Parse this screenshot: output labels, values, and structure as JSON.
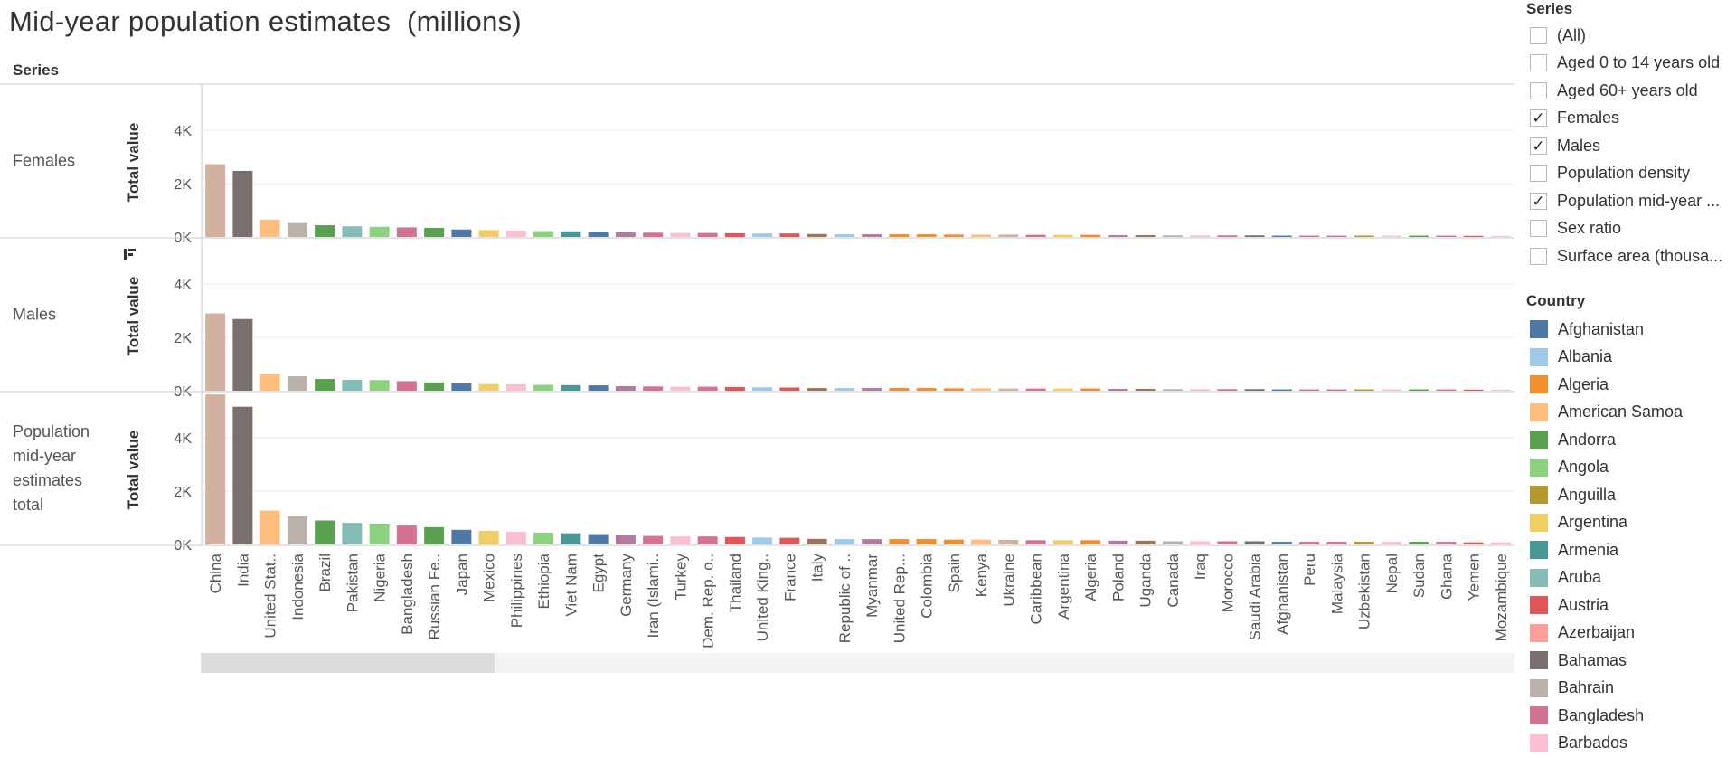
{
  "title": "Mid-year population estimates  (millions)",
  "row_header": "Series",
  "axis_label": "Total value",
  "series_filter": {
    "title": "Series",
    "items": [
      {
        "label": "(All)",
        "checked": false
      },
      {
        "label": "Aged 0 to 14 years old",
        "checked": false
      },
      {
        "label": "Aged 60+ years old",
        "checked": false
      },
      {
        "label": "Females",
        "checked": true
      },
      {
        "label": "Males",
        "checked": true
      },
      {
        "label": "Population density",
        "checked": false
      },
      {
        "label": "Population mid-year ...",
        "checked": true
      },
      {
        "label": "Sex ratio",
        "checked": false
      },
      {
        "label": "Surface area (thousa...",
        "checked": false
      }
    ]
  },
  "country_legend": {
    "title": "Country",
    "items": [
      {
        "label": "Afghanistan",
        "color": "#4e79a7"
      },
      {
        "label": "Albania",
        "color": "#a0cbe8"
      },
      {
        "label": "Algeria",
        "color": "#f28e2b"
      },
      {
        "label": "American Samoa",
        "color": "#ffbe7d"
      },
      {
        "label": "Andorra",
        "color": "#59a14f"
      },
      {
        "label": "Angola",
        "color": "#8cd17d"
      },
      {
        "label": "Anguilla",
        "color": "#b6992d"
      },
      {
        "label": "Argentina",
        "color": "#f1ce63"
      },
      {
        "label": "Armenia",
        "color": "#499894"
      },
      {
        "label": "Aruba",
        "color": "#86bcb6"
      },
      {
        "label": "Austria",
        "color": "#e15759"
      },
      {
        "label": "Azerbaijan",
        "color": "#ff9d9a"
      },
      {
        "label": "Bahamas",
        "color": "#79706e"
      },
      {
        "label": "Bahrain",
        "color": "#bab0ac"
      },
      {
        "label": "Bangladesh",
        "color": "#d37295"
      },
      {
        "label": "Barbados",
        "color": "#fabfd2"
      }
    ]
  },
  "chart_data": {
    "type": "bar",
    "layout": "small-multiples",
    "ylabel": "Total value",
    "ylim": [
      0,
      5600
    ],
    "yticks": [
      {
        "value": 0,
        "label": "0K"
      },
      {
        "value": 2000,
        "label": "2K"
      },
      {
        "value": 4000,
        "label": "4K"
      }
    ],
    "categories": [
      "China",
      "India",
      "United Stat..",
      "Indonesia",
      "Brazil",
      "Pakistan",
      "Nigeria",
      "Bangladesh",
      "Russian Fe..",
      "Japan",
      "Mexico",
      "Philippines",
      "Ethiopia",
      "Viet Nam",
      "Egypt",
      "Germany",
      "Iran (Islami..",
      "Turkey",
      "Dem. Rep. o..",
      "Thailand",
      "United King..",
      "France",
      "Italy",
      "Republic of ..",
      "Myanmar",
      "United Rep...",
      "Colombia",
      "Spain",
      "Kenya",
      "Ukraine",
      "Caribbean",
      "Argentina",
      "Algeria",
      "Poland",
      "Uganda",
      "Canada",
      "Iraq",
      "Morocco",
      "Saudi Arabia",
      "Afghanistan",
      "Peru",
      "Malaysia",
      "Uzbekistan",
      "Nepal",
      "Sudan",
      "Ghana",
      "Yemen",
      "Mozambique"
    ],
    "colors": [
      "#d4b0a0",
      "#79706e",
      "#ffbe7d",
      "#bab0ac",
      "#59a14f",
      "#86bcb6",
      "#8cd17d",
      "#d37295",
      "#59a14f",
      "#4e79a7",
      "#f1ce63",
      "#fabfd2",
      "#8cd17d",
      "#499894",
      "#4e79a7",
      "#b07aa1",
      "#d37295",
      "#fabfd2",
      "#d37295",
      "#e15759",
      "#a0cbe8",
      "#e15759",
      "#9c755f",
      "#a0cbe8",
      "#b07aa1",
      "#f28e2b",
      "#f28e2b",
      "#f28e2b",
      "#ffbe7d",
      "#d4b0a0",
      "#d37295",
      "#f1ce63",
      "#f28e2b",
      "#b07aa1",
      "#9c755f",
      "#bab0ac",
      "#fabfd2",
      "#d37295",
      "#79706e",
      "#4e79a7",
      "#d37295",
      "#d37295",
      "#b6992d",
      "#fabfd2",
      "#59a14f",
      "#d37295",
      "#e15759",
      "#fabfd2"
    ],
    "series": [
      {
        "name": "Females",
        "values": [
          2730,
          2480,
          650,
          520,
          440,
          400,
          380,
          360,
          340,
          280,
          260,
          240,
          220,
          210,
          190,
          170,
          160,
          150,
          150,
          140,
          130,
          130,
          110,
          100,
          100,
          100,
          100,
          90,
          90,
          90,
          80,
          80,
          80,
          70,
          70,
          60,
          60,
          60,
          60,
          50,
          50,
          50,
          50,
          50,
          50,
          50,
          40,
          40
        ]
      },
      {
        "name": "Males",
        "values": [
          2900,
          2690,
          630,
          540,
          440,
          410,
          400,
          360,
          310,
          270,
          250,
          240,
          220,
          210,
          200,
          170,
          160,
          150,
          150,
          140,
          130,
          120,
          100,
          100,
          100,
          100,
          100,
          90,
          90,
          80,
          80,
          80,
          80,
          70,
          70,
          60,
          60,
          60,
          60,
          50,
          50,
          50,
          50,
          50,
          50,
          50,
          40,
          40
        ]
      },
      {
        "name": "Population mid-year estimates total",
        "values": [
          5630,
          5170,
          1270,
          1060,
          900,
          810,
          780,
          720,
          650,
          550,
          510,
          480,
          440,
          420,
          390,
          340,
          320,
          300,
          300,
          280,
          260,
          250,
          210,
          200,
          200,
          200,
          200,
          180,
          180,
          170,
          160,
          160,
          160,
          140,
          140,
          120,
          120,
          120,
          120,
          100,
          100,
          100,
          100,
          100,
          100,
          100,
          80,
          80
        ]
      }
    ]
  },
  "panels": [
    {
      "label_lines": [
        "Females"
      ]
    },
    {
      "label_lines": [
        "Males"
      ]
    },
    {
      "label_lines": [
        "Population",
        "mid-year",
        "estimates",
        "total"
      ]
    }
  ]
}
